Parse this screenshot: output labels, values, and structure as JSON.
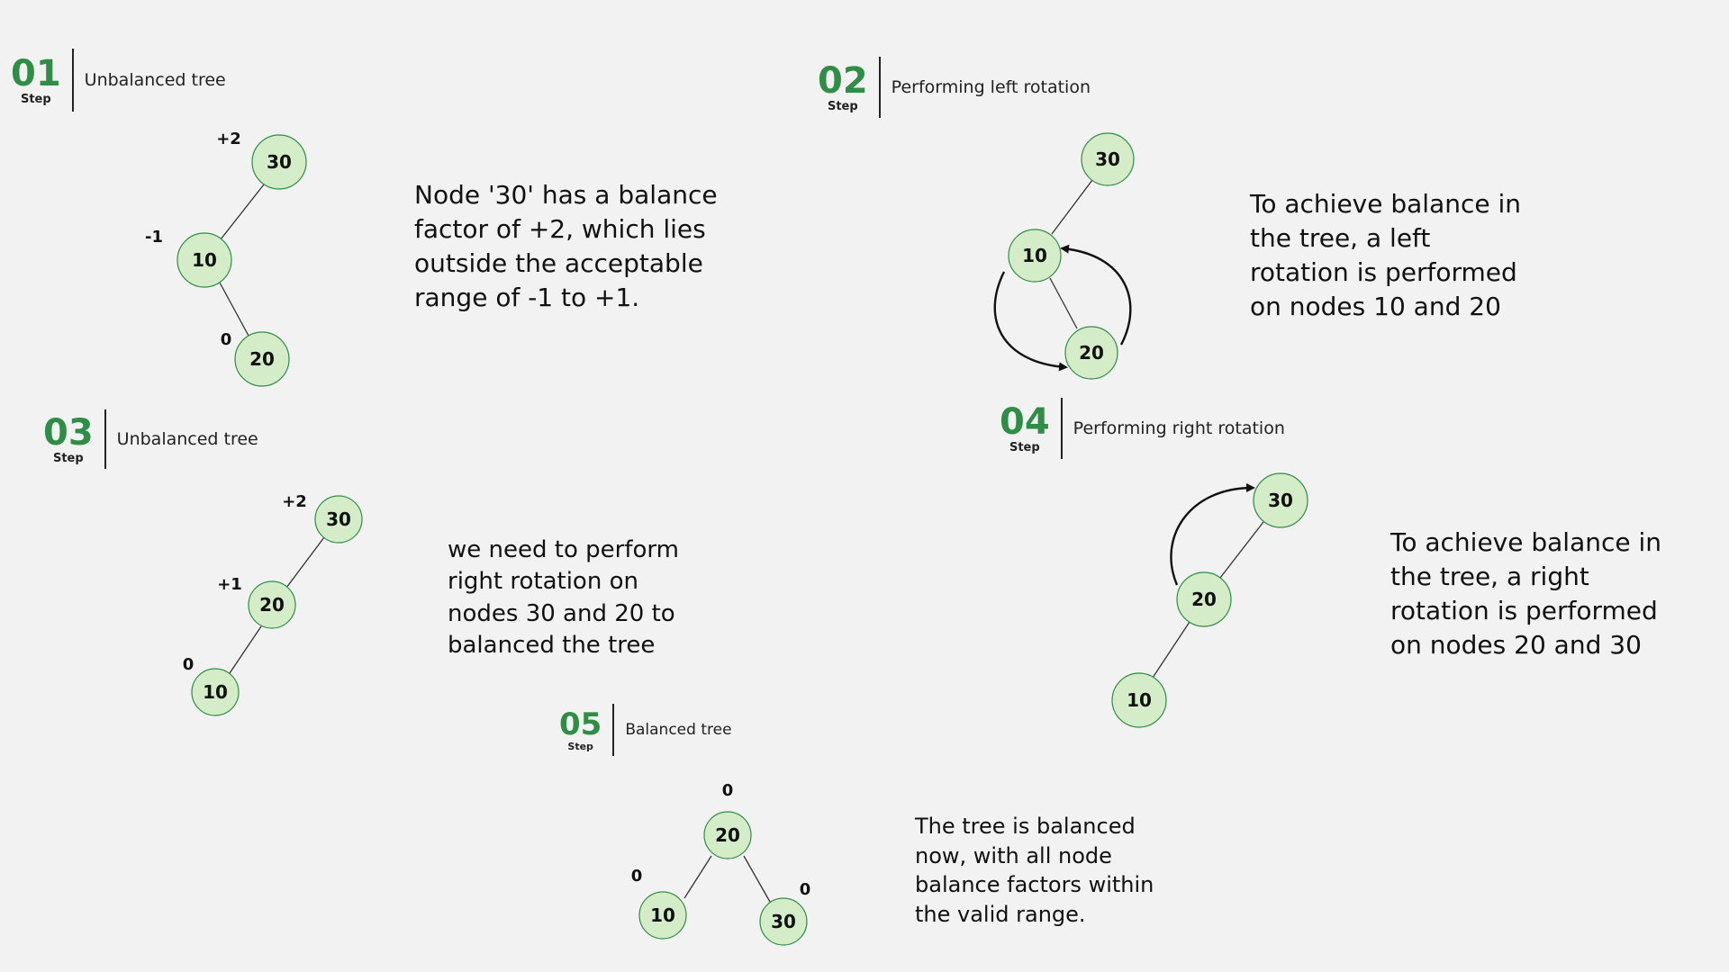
{
  "steps": [
    {
      "num": "01",
      "word": "Step",
      "title": "Unbalanced tree"
    },
    {
      "num": "02",
      "word": "Step",
      "title": "Performing left rotation"
    },
    {
      "num": "03",
      "word": "Step",
      "title": "Unbalanced tree"
    },
    {
      "num": "04",
      "word": "Step",
      "title": "Performing right rotation"
    },
    {
      "num": "05",
      "word": "Step",
      "title": "Balanced tree"
    }
  ],
  "descriptions": {
    "step1": [
      "Node '30' has a balance",
      "factor of +2, which lies",
      "outside the acceptable",
      "range of -1 to +1."
    ],
    "step2": [
      "To achieve balance in",
      "the tree, a left",
      "rotation is performed",
      "on nodes 10 and 20"
    ],
    "step3": [
      "we need to perform",
      "right rotation on",
      "nodes 30 and 20 to",
      "balanced the tree"
    ],
    "step4": [
      "To achieve balance in",
      "the tree, a right",
      "rotation is performed",
      "on nodes 20 and 30"
    ],
    "step5": [
      "The tree is balanced",
      "now, with all node",
      "balance factors within",
      "the valid range."
    ]
  },
  "trees": {
    "step1": {
      "nodes": [
        "30",
        "10",
        "20"
      ],
      "balance": [
        "+2",
        "-1",
        "0"
      ]
    },
    "step2": {
      "nodes": [
        "30",
        "10",
        "20"
      ]
    },
    "step3": {
      "nodes": [
        "30",
        "20",
        "10"
      ],
      "balance": [
        "+2",
        "+1",
        "0"
      ]
    },
    "step4": {
      "nodes": [
        "30",
        "20",
        "10"
      ]
    },
    "step5": {
      "nodes": [
        "20",
        "10",
        "30"
      ],
      "balance": [
        "0",
        "0",
        "0"
      ]
    }
  },
  "colors": {
    "accent": "#2f8d46",
    "node_fill": "#d4ecc8",
    "background": "#f2f2f2"
  }
}
